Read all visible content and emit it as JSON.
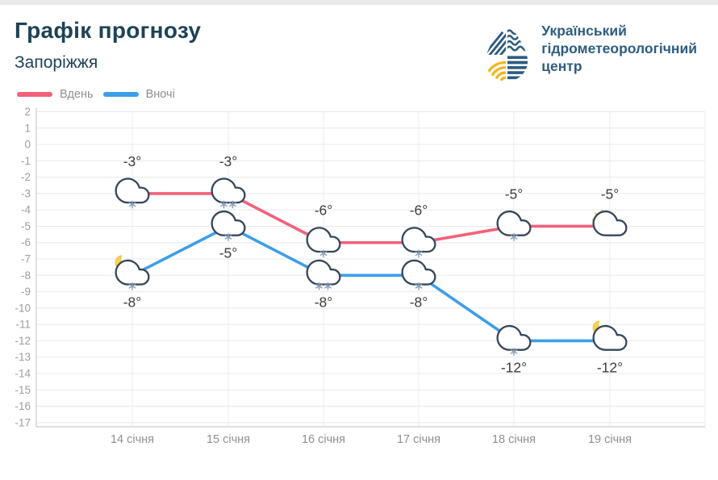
{
  "header": {
    "title": "Графік прогнозу",
    "subtitle": "Запоріжжя",
    "logo": {
      "lines": [
        "Український",
        "гідрометеорологічний",
        "центр"
      ],
      "text_color": "#2d5c80",
      "drop_blue": "#2d5c80",
      "drop_yellow": "#f2b71f"
    }
  },
  "legend": {
    "items": [
      {
        "label": "Вдень",
        "color": "#f2617a"
      },
      {
        "label": "Вночі",
        "color": "#3d9ee9"
      }
    ]
  },
  "chart_data": {
    "type": "line",
    "categories": [
      "14 січня",
      "15 січня",
      "16 січня",
      "17 січня",
      "18 січня",
      "19 січня"
    ],
    "ylim": [
      -17,
      2
    ],
    "y_ticks": [
      2,
      1,
      0,
      -1,
      -2,
      -3,
      -4,
      -5,
      -6,
      -7,
      -8,
      -9,
      -10,
      -11,
      -12,
      -13,
      -14,
      -15,
      -16,
      -17
    ],
    "grid": true,
    "legend_position": "top-left",
    "series": [
      {
        "name": "Вдень",
        "color": "#f2617a",
        "label_side": "above",
        "values": [
          -3,
          -3,
          -6,
          -6,
          -5,
          -5
        ],
        "point_labels": [
          "-3°",
          "-3°",
          "-6°",
          "-6°",
          "-5°",
          "-5°"
        ],
        "icons": [
          {
            "sky": "cloud",
            "snowflakes": 1
          },
          {
            "sky": "cloud",
            "snowflakes": 2
          },
          {
            "sky": "cloud",
            "snowflakes": 1
          },
          {
            "sky": "cloud",
            "snowflakes": 1
          },
          {
            "sky": "cloud",
            "snowflakes": 1
          },
          {
            "sky": "sun-cloud",
            "snowflakes": 0
          }
        ]
      },
      {
        "name": "Вночі",
        "color": "#3d9ee9",
        "label_side": "below",
        "values": [
          -8,
          -5,
          -8,
          -8,
          -12,
          -12
        ],
        "point_labels": [
          "-8°",
          "-5°",
          "-8°",
          "-8°",
          "-12°",
          "-12°"
        ],
        "icons": [
          {
            "sky": "moon-cloud",
            "snowflakes": 1
          },
          {
            "sky": "cloud",
            "snowflakes": 1
          },
          {
            "sky": "cloud",
            "snowflakes": 2
          },
          {
            "sky": "cloud",
            "snowflakes": 1
          },
          {
            "sky": "cloud",
            "snowflakes": 1
          },
          {
            "sky": "moon-cloud",
            "snowflakes": 0
          }
        ]
      }
    ],
    "icon_colors": {
      "cloud_outline": "#36465c",
      "snowflake": "#8da2bc",
      "moon": "#f7d254",
      "sun": "#f5c63c"
    },
    "point_label_color": "#3d3d3d",
    "axis_text_color": "#9d9d9d"
  }
}
